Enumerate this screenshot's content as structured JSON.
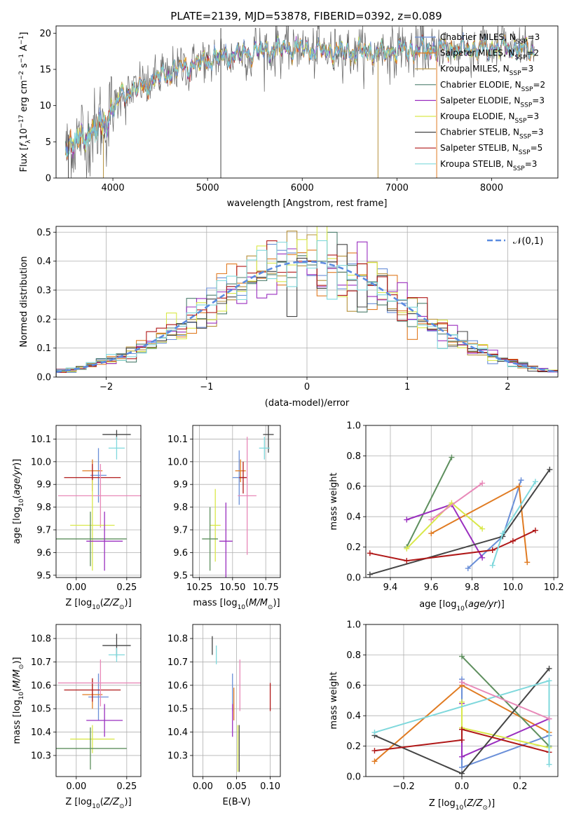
{
  "figure_title": "PLATE=2139, MJD=53878, FIBERID=0392, z=0.089",
  "colors": {
    "Chabrier MILES": "#6a8fd8",
    "Salpeter MILES": "#e07b22",
    "Kroupa MILES": "#b5903a",
    "Chabrier ELODIE": "#4f7f6f",
    "Salpeter ELODIE": "#9a2fbf",
    "Kroupa ELODIE": "#d9e84a",
    "Chabrier STELIB": "#444444",
    "Salpeter STELIB": "#b01818",
    "Kroupa STELIB": "#7fd8dc",
    "extra_pink": "#e889b8",
    "extra_green": "#5e8f5e",
    "extra_gray": "#555555"
  },
  "chart_data": [
    {
      "type": "line",
      "title": "PLATE=2139, MJD=53878, FIBERID=0392, z=0.089",
      "xlabel": "wavelength [Angstrom, rest frame]",
      "ylabel_parts": [
        "Flux [",
        "f",
        "λ",
        "10",
        "−17",
        " erg cm",
        "−2",
        " s",
        "−1",
        " A",
        "−1",
        "]"
      ],
      "xlim": [
        3400,
        8700
      ],
      "ylim": [
        0,
        21
      ],
      "xticks": [
        4000,
        5000,
        6000,
        7000,
        8000
      ],
      "yticks": [
        0,
        5,
        10,
        15,
        20
      ],
      "grid": false,
      "legend_position": "right",
      "legend": [
        {
          "name": "Chabrier MILES",
          "nssp": "3"
        },
        {
          "name": "Salpeter MILES",
          "nssp": "2"
        },
        {
          "name": "Kroupa MILES",
          "nssp": "3"
        },
        {
          "name": "Chabrier ELODIE",
          "nssp": "2"
        },
        {
          "name": "Salpeter ELODIE",
          "nssp": "3"
        },
        {
          "name": "Kroupa ELODIE",
          "nssp": "3"
        },
        {
          "name": "Chabrier STELIB",
          "nssp": "3"
        },
        {
          "name": "Salpeter STELIB",
          "nssp": "5"
        },
        {
          "name": "Kroupa STELIB",
          "nssp": "3"
        }
      ],
      "continuum": {
        "x": [
          3500,
          3600,
          3700,
          3800,
          3900,
          4000,
          4100,
          4200,
          4300,
          4400,
          4500,
          4600,
          4800,
          5000,
          5200,
          5400,
          5600,
          5800,
          6000,
          6200,
          6400,
          6600,
          6800,
          7000,
          7200,
          7400,
          7600,
          7800,
          8000,
          8200,
          8400
        ],
        "y": [
          4.5,
          5.0,
          5.5,
          6.5,
          7.5,
          9.5,
          11.5,
          12.0,
          12.5,
          13.2,
          14.0,
          14.6,
          15.5,
          16.2,
          16.8,
          17.2,
          17.6,
          17.9,
          17.9,
          17.5,
          17.5,
          17.4,
          17.3,
          17.6,
          17.7,
          17.8,
          17.8,
          17.9,
          18.0,
          17.9,
          17.7
        ]
      },
      "spikes": [
        {
          "x": 3530,
          "y0": 0,
          "y1": 6,
          "color": "Chabrier STELIB"
        },
        {
          "x": 3900,
          "y0": 0,
          "y1": 6,
          "color": "Kroupa MILES"
        },
        {
          "x": 5140,
          "y0": 0,
          "y1": 20.7,
          "color": "Chabrier STELIB"
        },
        {
          "x": 6800,
          "y0": 0,
          "y1": 17.5,
          "color": "Kroupa MILES"
        },
        {
          "x": 7420,
          "y0": 0,
          "y1": 17.5,
          "color": "Salpeter MILES"
        }
      ]
    },
    {
      "type": "line",
      "xlabel": "(data-model)/error",
      "ylabel": "Normed distribution",
      "xlim": [
        -2.5,
        2.5
      ],
      "ylim": [
        0,
        0.52
      ],
      "xticks": [
        -2,
        -1,
        0,
        1,
        2
      ],
      "yticks": [
        0.0,
        0.1,
        0.2,
        0.3,
        0.4,
        0.5
      ],
      "grid": true,
      "legend_position": "top-right",
      "reference": {
        "name": "𝒩(0,1)",
        "mean": 0,
        "sigma": 1,
        "color": "#5b8be0"
      },
      "bin_width": 0.1
    },
    {
      "type": "scatter",
      "xlabel_parts": [
        "Z [log",
        "10",
        "(",
        "Z/Z",
        "⊙",
        ")]"
      ],
      "ylabel_parts": [
        "age  [log",
        "10",
        "(",
        "age/yr",
        ")]"
      ],
      "xlim": [
        -0.1,
        0.32
      ],
      "ylim": [
        9.49,
        10.16
      ],
      "xticks": [
        0.0,
        0.25
      ],
      "yticks": [
        9.5,
        9.6,
        9.7,
        9.8,
        9.9,
        10.0,
        10.1
      ],
      "grid": true,
      "points": [
        {
          "x": 0.2,
          "y": 10.12,
          "xerr": 0.07,
          "yerr": 0.02,
          "color": "Chabrier STELIB"
        },
        {
          "x": 0.2,
          "y": 10.06,
          "xerr": 0.04,
          "yerr": 0.05,
          "color": "Kroupa STELIB"
        },
        {
          "x": 0.11,
          "y": 9.94,
          "xerr": 0.04,
          "yerr": 0.12,
          "color": "Chabrier MILES"
        },
        {
          "x": 0.08,
          "y": 9.96,
          "xerr": 0.05,
          "yerr": 0.05,
          "color": "Salpeter MILES"
        },
        {
          "x": 0.08,
          "y": 9.93,
          "xerr": 0.14,
          "yerr": 0.06,
          "color": "Salpeter STELIB"
        },
        {
          "x": 0.12,
          "y": 9.85,
          "xerr": 0.21,
          "yerr": 0.14,
          "color": "extra_pink"
        },
        {
          "x": 0.08,
          "y": 9.72,
          "xerr": 0.11,
          "yerr": 0.2,
          "color": "Kroupa ELODIE"
        },
        {
          "x": 0.07,
          "y": 9.66,
          "xerr": 0.18,
          "yerr": 0.12,
          "color": "extra_green"
        },
        {
          "x": 0.14,
          "y": 9.65,
          "xerr": 0.09,
          "yerr": 0.13,
          "color": "Salpeter ELODIE"
        }
      ]
    },
    {
      "type": "scatter",
      "xlabel_parts": [
        "mass [log",
        "10",
        "(",
        "M/M",
        "⊙",
        ")]"
      ],
      "xlim": [
        10.2,
        10.86
      ],
      "ylim": [
        9.49,
        10.16
      ],
      "xticks": [
        10.25,
        10.5,
        10.75
      ],
      "yticks": [
        9.5,
        9.6,
        9.7,
        9.8,
        9.9,
        10.0,
        10.1
      ],
      "grid": true,
      "points": [
        {
          "x": 10.77,
          "y": 10.12,
          "xerr": 0.04,
          "yerr": 0.08,
          "color": "Chabrier STELIB"
        },
        {
          "x": 10.74,
          "y": 10.06,
          "xerr": 0.04,
          "yerr": 0.05,
          "color": "Kroupa STELIB"
        },
        {
          "x": 10.55,
          "y": 9.93,
          "xerr": 0.05,
          "yerr": 0.12,
          "color": "Chabrier MILES"
        },
        {
          "x": 10.56,
          "y": 9.96,
          "xerr": 0.04,
          "yerr": 0.05,
          "color": "Salpeter MILES"
        },
        {
          "x": 10.58,
          "y": 9.93,
          "xerr": 0.03,
          "yerr": 0.07,
          "color": "Salpeter STELIB"
        },
        {
          "x": 10.61,
          "y": 9.85,
          "xerr": 0.07,
          "yerr": 0.26,
          "color": "extra_pink"
        },
        {
          "x": 10.37,
          "y": 9.72,
          "xerr": 0.04,
          "yerr": 0.16,
          "color": "Kroupa ELODIE"
        },
        {
          "x": 10.33,
          "y": 9.66,
          "xerr": 0.06,
          "yerr": 0.14,
          "color": "extra_green"
        },
        {
          "x": 10.45,
          "y": 9.65,
          "xerr": 0.05,
          "yerr": 0.17,
          "color": "Salpeter ELODIE"
        }
      ]
    },
    {
      "type": "line",
      "xlabel_parts": [
        "age  [log",
        "10",
        "(",
        "age/yr",
        ")]"
      ],
      "ylabel": "mass weight",
      "xlim": [
        9.28,
        10.22
      ],
      "ylim": [
        0,
        1.0
      ],
      "xticks": [
        9.4,
        9.6,
        9.8,
        10.0,
        10.2
      ],
      "yticks": [
        0.0,
        0.2,
        0.4,
        0.6,
        0.8,
        1.0
      ],
      "grid": true,
      "series": [
        {
          "color": "Chabrier MILES",
          "x": [
            9.78,
            9.95,
            10.04
          ],
          "y": [
            0.06,
            0.27,
            0.64
          ]
        },
        {
          "color": "Salpeter MILES",
          "x": [
            9.6,
            10.03,
            10.07
          ],
          "y": [
            0.29,
            0.6,
            0.1
          ]
        },
        {
          "color": "extra_green",
          "x": [
            9.48,
            9.7
          ],
          "y": [
            0.2,
            0.79
          ]
        },
        {
          "color": "Salpeter ELODIE",
          "x": [
            9.48,
            9.7,
            9.85
          ],
          "y": [
            0.38,
            0.48,
            0.13
          ]
        },
        {
          "color": "Kroupa ELODIE",
          "x": [
            9.48,
            9.7,
            9.85
          ],
          "y": [
            0.19,
            0.49,
            0.32
          ]
        },
        {
          "color": "Chabrier STELIB",
          "x": [
            9.3,
            9.95,
            10.18
          ],
          "y": [
            0.02,
            0.27,
            0.71
          ]
        },
        {
          "color": "Salpeter STELIB",
          "x": [
            9.3,
            9.48,
            9.9,
            10.0,
            10.11
          ],
          "y": [
            0.16,
            0.11,
            0.18,
            0.24,
            0.31
          ]
        },
        {
          "color": "Kroupa STELIB",
          "x": [
            9.9,
            9.95,
            10.11
          ],
          "y": [
            0.08,
            0.29,
            0.63
          ]
        },
        {
          "color": "extra_pink",
          "x": [
            9.6,
            9.85
          ],
          "y": [
            0.38,
            0.62
          ]
        }
      ]
    },
    {
      "type": "scatter",
      "xlabel_parts": [
        "Z [log",
        "10",
        "(",
        "Z/Z",
        "⊙",
        ")]"
      ],
      "ylabel_parts": [
        "mass [log",
        "10",
        "(",
        "M/M",
        "⊙",
        ")]"
      ],
      "xlim": [
        -0.1,
        0.32
      ],
      "ylim": [
        10.21,
        10.86
      ],
      "xticks": [
        0.0,
        0.25
      ],
      "yticks": [
        10.3,
        10.4,
        10.5,
        10.6,
        10.7,
        10.8
      ],
      "grid": true,
      "points": [
        {
          "x": 0.2,
          "y": 10.77,
          "xerr": 0.07,
          "yerr": 0.05,
          "color": "Chabrier STELIB"
        },
        {
          "x": 0.2,
          "y": 10.73,
          "xerr": 0.04,
          "yerr": 0.03,
          "color": "Kroupa STELIB"
        },
        {
          "x": 0.11,
          "y": 10.55,
          "xerr": 0.05,
          "yerr": 0.1,
          "color": "Chabrier MILES"
        },
        {
          "x": 0.08,
          "y": 10.56,
          "xerr": 0.05,
          "yerr": 0.06,
          "color": "Salpeter MILES"
        },
        {
          "x": 0.08,
          "y": 10.58,
          "xerr": 0.14,
          "yerr": 0.05,
          "color": "Salpeter STELIB"
        },
        {
          "x": 0.12,
          "y": 10.61,
          "xerr": 0.21,
          "yerr": 0.1,
          "color": "extra_pink"
        },
        {
          "x": 0.08,
          "y": 10.37,
          "xerr": 0.11,
          "yerr": 0.06,
          "color": "Kroupa ELODIE"
        },
        {
          "x": 0.07,
          "y": 10.33,
          "xerr": 0.18,
          "yerr": 0.09,
          "color": "extra_green"
        },
        {
          "x": 0.14,
          "y": 10.45,
          "xerr": 0.09,
          "yerr": 0.07,
          "color": "Salpeter ELODIE"
        }
      ]
    },
    {
      "type": "scatter",
      "xlabel": "E(B-V)",
      "xlim": [
        -0.015,
        0.115
      ],
      "ylim": [
        10.21,
        10.86
      ],
      "xticks": [
        0.0,
        0.05,
        0.1
      ],
      "yticks": [
        10.3,
        10.4,
        10.5,
        10.6,
        10.7,
        10.8
      ],
      "grid": true,
      "points": [
        {
          "x": 0.014,
          "y": 10.77,
          "yerr": 0.04,
          "color": "Chabrier STELIB"
        },
        {
          "x": 0.02,
          "y": 10.73,
          "yerr": 0.04,
          "color": "Kroupa STELIB"
        },
        {
          "x": 0.044,
          "y": 10.57,
          "yerr": 0.08,
          "color": "Chabrier MILES"
        },
        {
          "x": 0.046,
          "y": 10.52,
          "yerr": 0.07,
          "color": "Salpeter MILES"
        },
        {
          "x": 0.044,
          "y": 10.45,
          "yerr": 0.07,
          "color": "Salpeter ELODIE"
        },
        {
          "x": 0.055,
          "y": 10.6,
          "yerr": 0.11,
          "color": "extra_pink"
        },
        {
          "x": 0.052,
          "y": 10.33,
          "yerr": 0.1,
          "color": "Kroupa ELODIE"
        },
        {
          "x": 0.054,
          "y": 10.33,
          "yerr": 0.1,
          "color": "extra_gray"
        },
        {
          "x": 0.1,
          "y": 10.55,
          "yerr": 0.06,
          "color": "Salpeter STELIB"
        }
      ]
    },
    {
      "type": "line",
      "xlabel_parts": [
        "Z [log",
        "10",
        "(",
        "Z/Z",
        "⊙",
        ")]"
      ],
      "ylabel": "mass weight",
      "xlim": [
        -0.33,
        0.33
      ],
      "ylim": [
        0,
        1.0
      ],
      "xticks": [
        -0.2,
        0.0,
        0.2
      ],
      "yticks": [
        0.0,
        0.2,
        0.4,
        0.6,
        0.8,
        1.0
      ],
      "grid": true,
      "series": [
        {
          "color": "Chabrier MILES",
          "x": [
            0.0,
            0.0,
            0.3
          ],
          "y": [
            0.64,
            0.06,
            0.27
          ]
        },
        {
          "color": "Salpeter MILES",
          "x": [
            -0.3,
            0.0,
            0.3
          ],
          "y": [
            0.1,
            0.6,
            0.29
          ]
        },
        {
          "color": "extra_green",
          "x": [
            0.0,
            0.3
          ],
          "y": [
            0.79,
            0.2
          ]
        },
        {
          "color": "Salpeter ELODIE",
          "x": [
            0.0,
            0.0,
            0.3
          ],
          "y": [
            0.48,
            0.13,
            0.38
          ]
        },
        {
          "color": "Kroupa ELODIE",
          "x": [
            0.0,
            0.0,
            0.3
          ],
          "y": [
            0.49,
            0.32,
            0.19
          ]
        },
        {
          "color": "Chabrier STELIB",
          "x": [
            -0.3,
            0.0,
            0.3
          ],
          "y": [
            0.27,
            0.02,
            0.71
          ]
        },
        {
          "color": "Salpeter STELIB",
          "x": [
            -0.3,
            0.0,
            0.0,
            0.3
          ],
          "y": [
            0.17,
            0.24,
            0.31,
            0.16
          ]
        },
        {
          "color": "Kroupa STELIB",
          "x": [
            -0.3,
            0.3,
            0.3
          ],
          "y": [
            0.29,
            0.63,
            0.08
          ]
        },
        {
          "color": "extra_pink",
          "x": [
            0.0,
            0.3
          ],
          "y": [
            0.62,
            0.38
          ]
        }
      ]
    }
  ]
}
